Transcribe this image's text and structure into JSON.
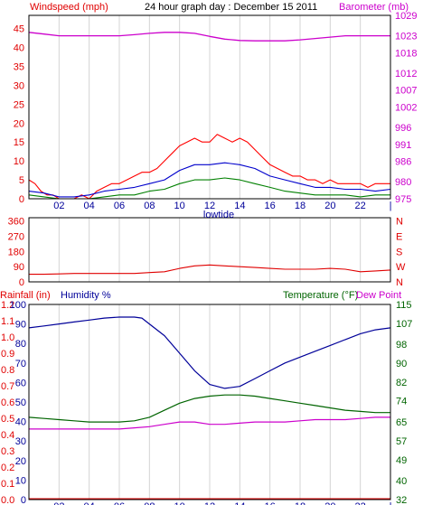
{
  "title": "24 hour graph day : December 15 2011",
  "colors": {
    "windspeed": "#e00000",
    "gust": "#ff0000",
    "wind_avg": "#0000cc",
    "wind_low": "#008000",
    "barometer": "#cc00cc",
    "rainfall": "#e00000",
    "humidity": "#000099",
    "temperature": "#006400",
    "dewpoint": "#cc00cc",
    "grid": "#d4d4d4",
    "frame": "#000000"
  },
  "chart_data": [
    {
      "type": "line",
      "panel": "wind-barometer",
      "left_axis_label": "Windspeed (mph)",
      "right_axis_label": "Barometer (mb)",
      "left_ticks": [
        "0",
        "5",
        "10",
        "15",
        "20",
        "25",
        "30",
        "35",
        "40",
        "45"
      ],
      "right_ticks": [
        "975",
        "980",
        "986",
        "991",
        "996",
        "1002",
        "1007",
        "1012",
        "1018",
        "1023",
        "1029"
      ],
      "x_ticks": [
        "02",
        "04",
        "06",
        "08",
        "10",
        "12",
        "14",
        "16",
        "18",
        "20",
        "22"
      ],
      "x_note": "lowtide",
      "ylim": [
        0,
        48.5
      ],
      "y2lim": [
        975,
        1029
      ],
      "xlim": [
        0,
        24
      ],
      "series": [
        {
          "key": "gust",
          "axis": "left",
          "points": [
            [
              0,
              5
            ],
            [
              0.4,
              4
            ],
            [
              0.8,
              2
            ],
            [
              1.2,
              1
            ],
            [
              1.6,
              1
            ],
            [
              2,
              0
            ],
            [
              2.5,
              0
            ],
            [
              3,
              0
            ],
            [
              3.5,
              1
            ],
            [
              4,
              0
            ],
            [
              4.5,
              2
            ],
            [
              5,
              3
            ],
            [
              5.5,
              4
            ],
            [
              6,
              4
            ],
            [
              6.5,
              5
            ],
            [
              7,
              6
            ],
            [
              7.5,
              7
            ],
            [
              8,
              7
            ],
            [
              8.5,
              8
            ],
            [
              9,
              10
            ],
            [
              9.5,
              12
            ],
            [
              10,
              14
            ],
            [
              10.5,
              15
            ],
            [
              11,
              16
            ],
            [
              11.5,
              15
            ],
            [
              12,
              15
            ],
            [
              12.5,
              17
            ],
            [
              13,
              16
            ],
            [
              13.5,
              15
            ],
            [
              14,
              16
            ],
            [
              14.5,
              15
            ],
            [
              15,
              13
            ],
            [
              15.5,
              11
            ],
            [
              16,
              9
            ],
            [
              16.5,
              8
            ],
            [
              17,
              7
            ],
            [
              17.5,
              6
            ],
            [
              18,
              6
            ],
            [
              18.5,
              5
            ],
            [
              19,
              5
            ],
            [
              19.5,
              4
            ],
            [
              20,
              5
            ],
            [
              20.5,
              4
            ],
            [
              21,
              4
            ],
            [
              21.5,
              4
            ],
            [
              22,
              4
            ],
            [
              22.5,
              3
            ],
            [
              23,
              4
            ],
            [
              23.5,
              4
            ],
            [
              24,
              4
            ]
          ]
        },
        {
          "key": "wind_avg",
          "axis": "left",
          "points": [
            [
              0,
              2
            ],
            [
              1,
              1.5
            ],
            [
              2,
              0.5
            ],
            [
              3,
              0.5
            ],
            [
              4,
              1
            ],
            [
              5,
              2
            ],
            [
              6,
              2.5
            ],
            [
              7,
              3
            ],
            [
              8,
              4
            ],
            [
              9,
              5
            ],
            [
              10,
              7.5
            ],
            [
              11,
              9
            ],
            [
              12,
              9
            ],
            [
              13,
              9.5
            ],
            [
              14,
              9
            ],
            [
              15,
              8
            ],
            [
              16,
              6
            ],
            [
              17,
              5
            ],
            [
              18,
              4
            ],
            [
              19,
              3
            ],
            [
              20,
              3
            ],
            [
              21,
              2.5
            ],
            [
              22,
              2.5
            ],
            [
              23,
              2
            ],
            [
              24,
              2.5
            ]
          ]
        },
        {
          "key": "wind_low",
          "axis": "left",
          "points": [
            [
              0,
              1
            ],
            [
              1,
              0.5
            ],
            [
              2,
              0
            ],
            [
              3,
              0
            ],
            [
              4,
              0
            ],
            [
              5,
              0.5
            ],
            [
              6,
              1
            ],
            [
              7,
              1
            ],
            [
              8,
              2
            ],
            [
              9,
              2.5
            ],
            [
              10,
              4
            ],
            [
              11,
              5
            ],
            [
              12,
              5
            ],
            [
              13,
              5.5
            ],
            [
              14,
              5
            ],
            [
              15,
              4
            ],
            [
              16,
              3
            ],
            [
              17,
              2
            ],
            [
              18,
              1.5
            ],
            [
              19,
              1
            ],
            [
              20,
              1
            ],
            [
              21,
              1
            ],
            [
              22,
              0.5
            ],
            [
              23,
              1
            ],
            [
              24,
              1
            ]
          ]
        },
        {
          "key": "barometer",
          "axis": "right",
          "points": [
            [
              0,
              1024
            ],
            [
              1,
              1023.5
            ],
            [
              2,
              1023
            ],
            [
              3,
              1023
            ],
            [
              4,
              1023
            ],
            [
              5,
              1023
            ],
            [
              6,
              1023
            ],
            [
              7,
              1023.3
            ],
            [
              8,
              1023.7
            ],
            [
              9,
              1024
            ],
            [
              10,
              1024
            ],
            [
              11,
              1023.7
            ],
            [
              12,
              1022.8
            ],
            [
              13,
              1022
            ],
            [
              14,
              1021.6
            ],
            [
              15,
              1021.5
            ],
            [
              16,
              1021.5
            ],
            [
              17,
              1021.5
            ],
            [
              18,
              1021.8
            ],
            [
              19,
              1022.2
            ],
            [
              20,
              1022.6
            ],
            [
              21,
              1023
            ],
            [
              22,
              1023
            ],
            [
              23,
              1023
            ],
            [
              24,
              1023
            ]
          ]
        }
      ]
    },
    {
      "type": "line",
      "panel": "wind-direction",
      "left_ticks": [
        "0",
        "90",
        "180",
        "270",
        "360"
      ],
      "right_ticks": [
        "N",
        "E",
        "S",
        "W",
        "N"
      ],
      "ylim": [
        0,
        380
      ],
      "xlim": [
        0,
        24
      ],
      "series": [
        {
          "key": "direction",
          "axis": "left",
          "points": [
            [
              0,
              45
            ],
            [
              1,
              45
            ],
            [
              2,
              47
            ],
            [
              3,
              50
            ],
            [
              4,
              50
            ],
            [
              5,
              50
            ],
            [
              6,
              50
            ],
            [
              7,
              50
            ],
            [
              8,
              55
            ],
            [
              9,
              60
            ],
            [
              10,
              80
            ],
            [
              11,
              95
            ],
            [
              12,
              100
            ],
            [
              13,
              95
            ],
            [
              14,
              90
            ],
            [
              15,
              85
            ],
            [
              16,
              80
            ],
            [
              17,
              75
            ],
            [
              18,
              75
            ],
            [
              19,
              75
            ],
            [
              20,
              80
            ],
            [
              21,
              75
            ],
            [
              22,
              60
            ],
            [
              23,
              65
            ],
            [
              24,
              70
            ]
          ]
        }
      ]
    },
    {
      "type": "line",
      "panel": "rain-humidity-temp",
      "rain_label": "Rainfall (in)",
      "humidity_label": "Humidity %",
      "temp_label": "Temperature (°F)",
      "dew_label": "Dew Point",
      "rain_ticks": [
        "0.0",
        "0.1",
        "0.2",
        "0.3",
        "0.4",
        "0.5",
        "0.6",
        "0.7",
        "0.8",
        "0.9",
        "1.0",
        "1.1",
        "1.2"
      ],
      "humidity_ticks": [
        "0",
        "10",
        "20",
        "30",
        "40",
        "50",
        "60",
        "70",
        "80",
        "90",
        "100"
      ],
      "temp_ticks": [
        "32",
        "40",
        "49",
        "57",
        "65",
        "74",
        "82",
        "90",
        "98",
        "107",
        "115"
      ],
      "x_ticks": [
        "02",
        "04",
        "06",
        "08",
        "10",
        "12",
        "14",
        "16",
        "18",
        "20",
        "22"
      ],
      "x_note": "lowtide",
      "humidity_lim": [
        0,
        100
      ],
      "temp_lim": [
        32,
        115
      ],
      "xlim": [
        0,
        24
      ],
      "series": [
        {
          "key": "humidity",
          "axis": "humidity",
          "points": [
            [
              0,
              88
            ],
            [
              1,
              89
            ],
            [
              2,
              90
            ],
            [
              3,
              91
            ],
            [
              4,
              92
            ],
            [
              5,
              93
            ],
            [
              6,
              93.5
            ],
            [
              7,
              93.5
            ],
            [
              7.5,
              93
            ],
            [
              8,
              90
            ],
            [
              9,
              84
            ],
            [
              10,
              75
            ],
            [
              11,
              66
            ],
            [
              12,
              59
            ],
            [
              13,
              57
            ],
            [
              14,
              58
            ],
            [
              15,
              62
            ],
            [
              16,
              66
            ],
            [
              17,
              70
            ],
            [
              18,
              73
            ],
            [
              19,
              76
            ],
            [
              20,
              79
            ],
            [
              21,
              82
            ],
            [
              22,
              85
            ],
            [
              23,
              87
            ],
            [
              24,
              88
            ]
          ]
        },
        {
          "key": "temperature",
          "axis": "temp",
          "points": [
            [
              0,
              67
            ],
            [
              1,
              66.5
            ],
            [
              2,
              66
            ],
            [
              3,
              65.5
            ],
            [
              4,
              65
            ],
            [
              5,
              65
            ],
            [
              6,
              65
            ],
            [
              7,
              65.5
            ],
            [
              8,
              67
            ],
            [
              9,
              70
            ],
            [
              10,
              73
            ],
            [
              11,
              75
            ],
            [
              12,
              76
            ],
            [
              13,
              76.5
            ],
            [
              14,
              76.5
            ],
            [
              15,
              76
            ],
            [
              16,
              75
            ],
            [
              17,
              74
            ],
            [
              18,
              73
            ],
            [
              19,
              72
            ],
            [
              20,
              71
            ],
            [
              21,
              70
            ],
            [
              22,
              69.5
            ],
            [
              23,
              69
            ],
            [
              24,
              69
            ]
          ]
        },
        {
          "key": "dewpoint",
          "axis": "temp",
          "points": [
            [
              0,
              62
            ],
            [
              1,
              62
            ],
            [
              2,
              62
            ],
            [
              3,
              62
            ],
            [
              4,
              62
            ],
            [
              5,
              62
            ],
            [
              6,
              62
            ],
            [
              7,
              62.5
            ],
            [
              8,
              63
            ],
            [
              9,
              64
            ],
            [
              10,
              65
            ],
            [
              11,
              65
            ],
            [
              12,
              64
            ],
            [
              13,
              64
            ],
            [
              14,
              64.5
            ],
            [
              15,
              65
            ],
            [
              16,
              65
            ],
            [
              17,
              65
            ],
            [
              18,
              65.5
            ],
            [
              19,
              66
            ],
            [
              20,
              66
            ],
            [
              21,
              66
            ],
            [
              22,
              66.5
            ],
            [
              23,
              67
            ],
            [
              24,
              67
            ]
          ]
        },
        {
          "key": "rainfall",
          "axis": "humidity",
          "points": [
            [
              0,
              0.4
            ],
            [
              24,
              0.4
            ]
          ]
        }
      ]
    }
  ]
}
